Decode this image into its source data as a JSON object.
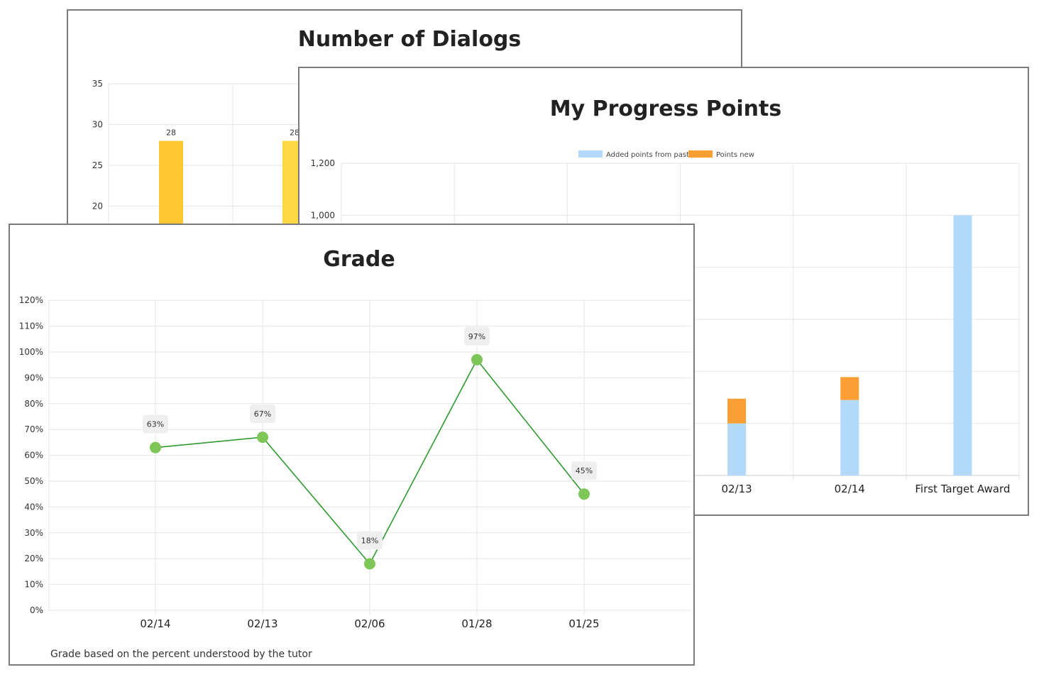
{
  "chart_data": [
    {
      "type": "bar",
      "title": "Number of Dialogs",
      "categories": [
        "",
        ""
      ],
      "values": [
        28,
        28
      ],
      "ylim": [
        0,
        35
      ],
      "yticks": [
        20,
        25,
        30,
        35
      ],
      "data_labels": [
        "28",
        "28"
      ],
      "grid": true,
      "colors": {
        "bars": [
          "#FFC832",
          "#FFD944"
        ]
      }
    },
    {
      "type": "bar",
      "stacked": true,
      "title": "My Progress Points",
      "categories": [
        "02/13",
        "02/14",
        "First Target Award"
      ],
      "series": [
        {
          "name": "Added points from past",
          "values": [
            200,
            290,
            1000
          ],
          "color": "#b3d9fb"
        },
        {
          "name": "Points new",
          "values": [
            95,
            88,
            0
          ],
          "color": "#fb9e34"
        }
      ],
      "ylim": [
        0,
        1200
      ],
      "yticks": [
        "1,000",
        "1,200"
      ],
      "legend": "top-center",
      "grid": true
    },
    {
      "type": "line",
      "title": "Grade",
      "categories": [
        "02/14",
        "02/13",
        "02/06",
        "01/28",
        "01/25"
      ],
      "values": [
        63,
        67,
        18,
        97,
        45
      ],
      "data_labels": [
        "63%",
        "67%",
        "18%",
        "97%",
        "45%"
      ],
      "ylim": [
        0,
        120
      ],
      "yticks": [
        "0%",
        "10%",
        "20%",
        "30%",
        "40%",
        "50%",
        "60%",
        "70%",
        "80%",
        "90%",
        "100%",
        "110%",
        "120%"
      ],
      "note": "Grade based on the percent understood by the tutor",
      "colors": {
        "line": "#2e9a2e",
        "points": "#7ec657",
        "label_bg": "#efefef"
      },
      "grid": true
    }
  ]
}
